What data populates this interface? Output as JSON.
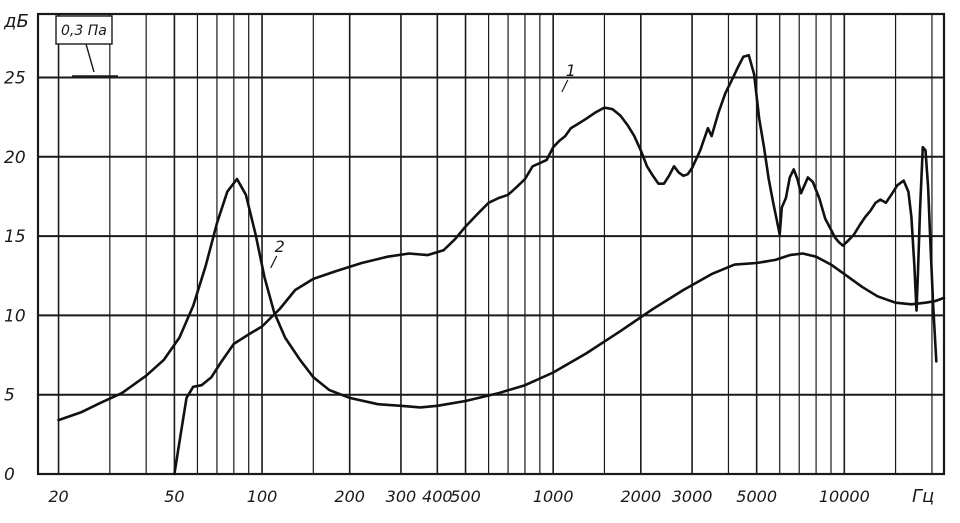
{
  "chart_data": {
    "type": "line",
    "title": "",
    "ylabel": "дБ",
    "xlabel": "Гц",
    "xscale": "log",
    "xlim": [
      17,
      22000
    ],
    "ylim": [
      0,
      29
    ],
    "grid": true,
    "reference_label": "0,3 Па",
    "yticks": [
      0,
      5,
      10,
      15,
      20,
      25
    ],
    "ytick_labels": [
      "0",
      "5",
      "10",
      "15",
      "20",
      "25"
    ],
    "xticks": [
      20,
      50,
      100,
      200,
      300,
      400,
      500,
      1000,
      2000,
      3000,
      5000,
      10000
    ],
    "xtick_labels": [
      "20",
      "50",
      "100",
      "200",
      "300",
      "400",
      "500",
      "1000",
      "2000",
      "3000",
      "5000",
      "10000"
    ],
    "xgrid": [
      17,
      20,
      30,
      40,
      50,
      60,
      70,
      80,
      90,
      100,
      150,
      200,
      300,
      400,
      500,
      600,
      700,
      800,
      900,
      1000,
      1500,
      2000,
      3000,
      4000,
      5000,
      6000,
      7000,
      8000,
      9000,
      10000,
      15000,
      20000,
      22000
    ],
    "series": [
      {
        "name": "1",
        "label_at": [
          1150,
          25.1
        ],
        "points": [
          [
            50,
            0
          ],
          [
            52,
            2
          ],
          [
            55,
            4.8
          ],
          [
            58,
            5.5
          ],
          [
            62,
            5.6
          ],
          [
            67,
            6.1
          ],
          [
            72,
            7
          ],
          [
            80,
            8.2
          ],
          [
            90,
            8.8
          ],
          [
            100,
            9.3
          ],
          [
            115,
            10.4
          ],
          [
            130,
            11.6
          ],
          [
            150,
            12.3
          ],
          [
            180,
            12.8
          ],
          [
            220,
            13.3
          ],
          [
            270,
            13.7
          ],
          [
            320,
            13.9
          ],
          [
            370,
            13.8
          ],
          [
            420,
            14.1
          ],
          [
            460,
            14.8
          ],
          [
            500,
            15.6
          ],
          [
            550,
            16.4
          ],
          [
            600,
            17.1
          ],
          [
            650,
            17.4
          ],
          [
            700,
            17.6
          ],
          [
            750,
            18.1
          ],
          [
            800,
            18.6
          ],
          [
            850,
            19.4
          ],
          [
            900,
            19.6
          ],
          [
            950,
            19.8
          ],
          [
            1000,
            20.6
          ],
          [
            1050,
            21.0
          ],
          [
            1100,
            21.3
          ],
          [
            1150,
            21.8
          ],
          [
            1200,
            22.0
          ],
          [
            1300,
            22.4
          ],
          [
            1400,
            22.8
          ],
          [
            1500,
            23.1
          ],
          [
            1600,
            23.0
          ],
          [
            1700,
            22.6
          ],
          [
            1800,
            22.0
          ],
          [
            1900,
            21.3
          ],
          [
            2000,
            20.4
          ],
          [
            2100,
            19.4
          ],
          [
            2200,
            18.8
          ],
          [
            2300,
            18.3
          ],
          [
            2400,
            18.3
          ],
          [
            2500,
            18.8
          ],
          [
            2600,
            19.4
          ],
          [
            2700,
            19.0
          ],
          [
            2800,
            18.8
          ],
          [
            2900,
            18.9
          ],
          [
            3000,
            19.3
          ],
          [
            3200,
            20.4
          ],
          [
            3400,
            21.8
          ],
          [
            3500,
            21.3
          ],
          [
            3700,
            22.8
          ],
          [
            3900,
            24.0
          ],
          [
            4100,
            24.8
          ],
          [
            4300,
            25.6
          ],
          [
            4500,
            26.3
          ],
          [
            4700,
            26.4
          ],
          [
            4900,
            25.2
          ],
          [
            5100,
            22.4
          ],
          [
            5300,
            20.6
          ],
          [
            5500,
            18.6
          ],
          [
            5700,
            17.1
          ],
          [
            5850,
            16.1
          ],
          [
            6000,
            15.1
          ],
          [
            6100,
            16.8
          ],
          [
            6300,
            17.4
          ],
          [
            6500,
            18.7
          ],
          [
            6700,
            19.2
          ],
          [
            6900,
            18.6
          ],
          [
            7100,
            17.7
          ],
          [
            7300,
            18.2
          ],
          [
            7500,
            18.7
          ],
          [
            7800,
            18.4
          ],
          [
            8200,
            17.4
          ],
          [
            8600,
            16.1
          ],
          [
            9000,
            15.4
          ],
          [
            9300,
            14.9
          ],
          [
            9600,
            14.6
          ],
          [
            9900,
            14.4
          ],
          [
            10300,
            14.7
          ],
          [
            10800,
            15.1
          ],
          [
            11300,
            15.7
          ],
          [
            11800,
            16.2
          ],
          [
            12300,
            16.6
          ],
          [
            12800,
            17.1
          ],
          [
            13300,
            17.3
          ],
          [
            13900,
            17.1
          ],
          [
            14500,
            17.6
          ],
          [
            15200,
            18.2
          ],
          [
            16000,
            18.5
          ],
          [
            16600,
            17.8
          ],
          [
            17000,
            16.2
          ],
          [
            17400,
            13.2
          ],
          [
            17700,
            10.3
          ],
          [
            17900,
            12.6
          ],
          [
            18200,
            16.6
          ],
          [
            18600,
            20.6
          ],
          [
            19000,
            20.4
          ],
          [
            19400,
            18.1
          ],
          [
            19800,
            14.1
          ],
          [
            20200,
            10.6
          ],
          [
            20700,
            7.1
          ]
        ]
      },
      {
        "name": "2",
        "label_at": [
          115,
          14.0
        ],
        "points": [
          [
            20,
            3.4
          ],
          [
            24,
            3.9
          ],
          [
            28,
            4.5
          ],
          [
            33,
            5.1
          ],
          [
            40,
            6.2
          ],
          [
            46,
            7.2
          ],
          [
            52,
            8.6
          ],
          [
            58,
            10.6
          ],
          [
            64,
            13.1
          ],
          [
            70,
            15.8
          ],
          [
            76,
            17.8
          ],
          [
            82,
            18.6
          ],
          [
            88,
            17.6
          ],
          [
            95,
            15.1
          ],
          [
            102,
            12.4
          ],
          [
            110,
            10.2
          ],
          [
            120,
            8.6
          ],
          [
            135,
            7.2
          ],
          [
            150,
            6.1
          ],
          [
            170,
            5.3
          ],
          [
            200,
            4.8
          ],
          [
            250,
            4.4
          ],
          [
            300,
            4.3
          ],
          [
            350,
            4.2
          ],
          [
            400,
            4.3
          ],
          [
            500,
            4.6
          ],
          [
            650,
            5.1
          ],
          [
            800,
            5.6
          ],
          [
            1000,
            6.4
          ],
          [
            1300,
            7.6
          ],
          [
            1700,
            9.0
          ],
          [
            2200,
            10.4
          ],
          [
            2800,
            11.6
          ],
          [
            3500,
            12.6
          ],
          [
            4200,
            13.2
          ],
          [
            5000,
            13.3
          ],
          [
            5800,
            13.5
          ],
          [
            6500,
            13.8
          ],
          [
            7200,
            13.9
          ],
          [
            8000,
            13.7
          ],
          [
            9000,
            13.2
          ],
          [
            10000,
            12.6
          ],
          [
            11500,
            11.8
          ],
          [
            13000,
            11.2
          ],
          [
            15000,
            10.8
          ],
          [
            17000,
            10.7
          ],
          [
            19000,
            10.8
          ],
          [
            20500,
            10.9
          ],
          [
            22000,
            11.1
          ]
        ]
      }
    ]
  }
}
